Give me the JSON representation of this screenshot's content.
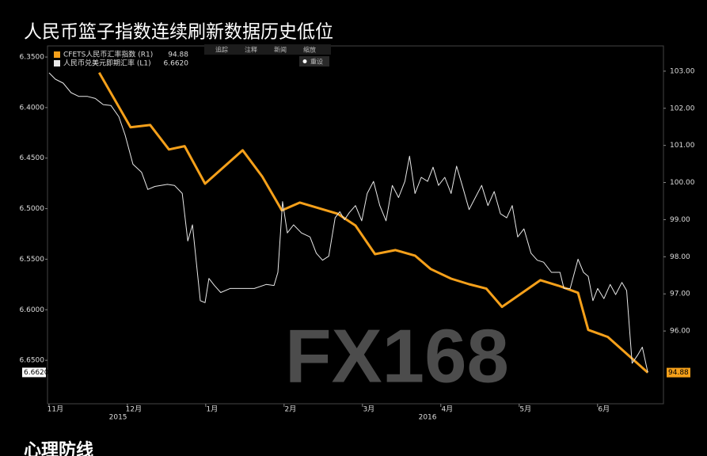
{
  "title": "人民币篮子指数连续刷新数据历史低位",
  "footer": "心理防线",
  "watermark": "FX168",
  "toolbar": [
    "追踪",
    "注释",
    "新闻",
    "缩放"
  ],
  "reset": "重设",
  "chart_data": {
    "type": "line",
    "xlim": [
      -0.1,
      7.76
    ],
    "xticks": [
      {
        "value": 0,
        "label": "11月"
      },
      {
        "value": 1,
        "label": "12月"
      },
      {
        "value": 2,
        "label": "1月"
      },
      {
        "value": 3,
        "label": "2月"
      },
      {
        "value": 4,
        "label": "3月"
      },
      {
        "value": 5,
        "label": "4月"
      },
      {
        "value": 6,
        "label": "5月"
      },
      {
        "value": 7,
        "label": "6月"
      }
    ],
    "year_labels": [
      {
        "value": 0.8,
        "label": "2015"
      },
      {
        "value": 4.75,
        "label": "2016"
      }
    ],
    "ylim": [
      6.693,
      6.339
    ],
    "yticks": [
      {
        "value": 6.35,
        "label": "6.3500"
      },
      {
        "value": 6.4,
        "label": "6.4000"
      },
      {
        "value": 6.45,
        "label": "6.4500"
      },
      {
        "value": 6.5,
        "label": "6.5000"
      },
      {
        "value": 6.55,
        "label": "6.5500"
      },
      {
        "value": 6.6,
        "label": "6.6000"
      },
      {
        "value": 6.65,
        "label": "6.6500"
      }
    ],
    "y2lim": [
      94.04,
      103.68
    ],
    "y2ticks": [
      {
        "value": 96,
        "label": "96.00"
      },
      {
        "value": 97,
        "label": "97.00"
      },
      {
        "value": 98,
        "label": "98.00"
      },
      {
        "value": 99,
        "label": "99.00"
      },
      {
        "value": 100,
        "label": "100.00"
      },
      {
        "value": 101,
        "label": "101.00"
      },
      {
        "value": 102,
        "label": "102.00"
      },
      {
        "value": 103,
        "label": "103.00"
      }
    ],
    "series": [
      {
        "name": "CFETS人民币汇率指数 (R1)",
        "color": "#f5a01a",
        "axis": "y2",
        "last_value": 94.88,
        "x": [
          0.56,
          0.96,
          1.21,
          1.45,
          1.65,
          1.91,
          2.39,
          2.64,
          2.89,
          3.12,
          3.6,
          3.83,
          4.08,
          4.34,
          4.59,
          4.79,
          5.05,
          5.28,
          5.5,
          5.7,
          6.19,
          6.42,
          6.67,
          6.8,
          7.05,
          7.56
        ],
        "values": [
          102.96,
          101.49,
          101.55,
          100.89,
          100.98,
          99.97,
          100.87,
          100.16,
          99.25,
          99.46,
          99.16,
          98.84,
          98.07,
          98.18,
          98.03,
          97.67,
          97.41,
          97.26,
          97.14,
          96.65,
          97.37,
          97.22,
          97.03,
          96.03,
          95.84,
          94.88
        ]
      },
      {
        "name": "人民币兑美元即期汇率 (L1)",
        "color": "#e8e8e8",
        "axis": "y",
        "last_value": {
          "value": 6.662,
          "label": "6.6620"
        },
        "x": [
          -0.08,
          0,
          0.1,
          0.2,
          0.3,
          0.41,
          0.51,
          0.61,
          0.71,
          0.81,
          0.89,
          0.99,
          1.1,
          1.18,
          1.27,
          1.43,
          1.52,
          1.62,
          1.69,
          1.75,
          1.85,
          1.91,
          1.96,
          2.03,
          2.11,
          2.23,
          2.39,
          2.54,
          2.69,
          2.79,
          2.84,
          2.9,
          2.96,
          3.04,
          3.14,
          3.25,
          3.33,
          3.41,
          3.49,
          3.57,
          3.63,
          3.69,
          3.75,
          3.83,
          3.91,
          3.98,
          4.06,
          4.14,
          4.22,
          4.3,
          4.38,
          4.46,
          4.52,
          4.59,
          4.67,
          4.75,
          4.82,
          4.89,
          4.97,
          5.05,
          5.12,
          5.2,
          5.28,
          5.36,
          5.44,
          5.52,
          5.6,
          5.68,
          5.76,
          5.83,
          5.9,
          5.98,
          6.07,
          6.15,
          6.23,
          6.33,
          6.44,
          6.49,
          6.57,
          6.67,
          6.74,
          6.8,
          6.86,
          6.92,
          7.0,
          7.08,
          7.15,
          7.23,
          7.29,
          7.36,
          7.43,
          7.49,
          7.56
        ],
        "values": [
          6.3656,
          6.3719,
          6.3758,
          6.3852,
          6.389,
          6.389,
          6.391,
          6.397,
          6.398,
          6.409,
          6.427,
          6.456,
          6.464,
          6.481,
          6.478,
          6.476,
          6.477,
          6.485,
          6.532,
          6.516,
          6.591,
          6.593,
          6.569,
          6.576,
          6.583,
          6.579,
          6.579,
          6.579,
          6.575,
          6.576,
          6.563,
          6.493,
          6.524,
          6.516,
          6.524,
          6.528,
          6.544,
          6.551,
          6.547,
          6.509,
          6.503,
          6.511,
          6.504,
          6.497,
          6.512,
          6.485,
          6.473,
          6.497,
          6.512,
          6.477,
          6.489,
          6.473,
          6.448,
          6.485,
          6.469,
          6.473,
          6.459,
          6.477,
          6.469,
          6.485,
          6.458,
          6.479,
          6.501,
          6.489,
          6.477,
          6.497,
          6.483,
          6.505,
          6.509,
          6.497,
          6.528,
          6.52,
          6.544,
          6.551,
          6.553,
          6.563,
          6.563,
          6.579,
          6.579,
          6.55,
          6.563,
          6.567,
          6.591,
          6.579,
          6.589,
          6.575,
          6.585,
          6.573,
          6.581,
          6.653,
          6.645,
          6.637,
          6.662
        ]
      }
    ]
  }
}
